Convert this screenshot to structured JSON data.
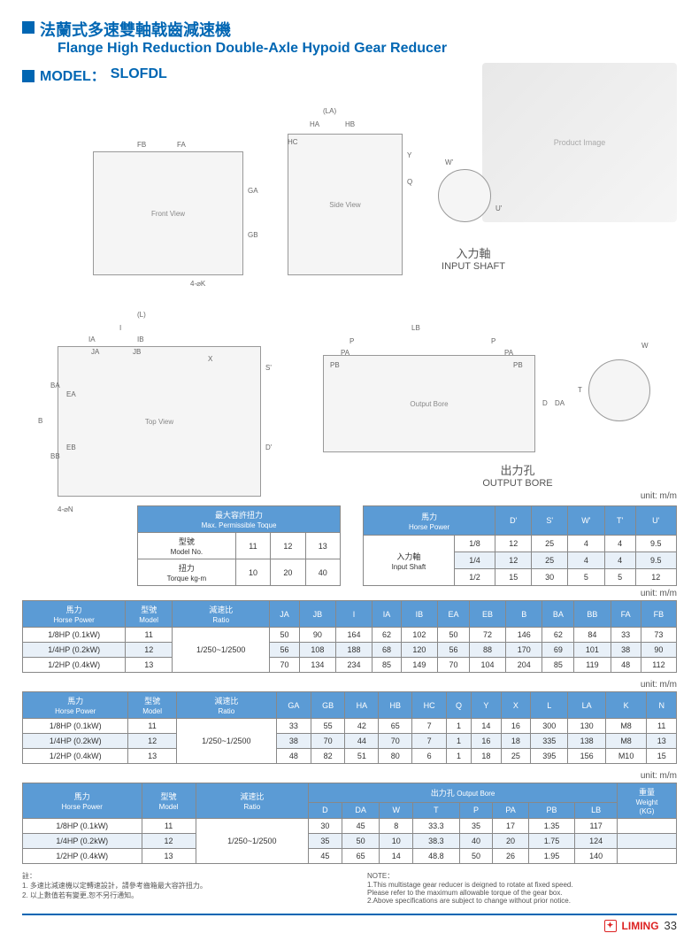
{
  "header": {
    "cn": "法蘭式多速雙軸戟齒減速機",
    "en": "Flange High Reduction Double-Axle Hypoid Gear Reducer",
    "model_lbl": "MODEL：",
    "model": "SLOFDL"
  },
  "labels": {
    "input_shaft_cn": "入力軸",
    "input_shaft_en": "INPUT SHAFT",
    "output_bore_cn": "出力孔",
    "output_bore_en": "OUTPUT BORE",
    "unit": "unit: m/m"
  },
  "dims": {
    "LA": "(LA)",
    "HA": "HA",
    "HB": "HB",
    "HC": "HC",
    "FB": "FB",
    "FA": "FA",
    "GA": "GA",
    "GB": "GB",
    "K": "4-⌀K",
    "Y": "Y",
    "Q": "Q",
    "W": "W'",
    "U": "U'",
    "L": "(L)",
    "I": "I",
    "IA": "IA",
    "IB": "IB",
    "JA": "JA",
    "JB": "JB",
    "X": "X",
    "S": "S'",
    "B": "B",
    "BA": "BA",
    "BB": "BB",
    "EA": "EA",
    "EB": "EB",
    "D": "D'",
    "N": "4-⌀N",
    "LB": "LB",
    "P": "P",
    "PA": "PA",
    "PB": "PB",
    "D2": "D",
    "DA": "DA",
    "T": "T",
    "W2": "W"
  },
  "torque": {
    "title_cn": "最大容許扭力",
    "title_en": "Max. Permissible Toque",
    "r1_cn": "型號",
    "r1_en": "Model No.",
    "r1_vals": [
      "11",
      "12",
      "13"
    ],
    "r2_cn": "扭力",
    "r2_en": "Torque kg-m",
    "r2_vals": [
      "10",
      "20",
      "40"
    ]
  },
  "shaft": {
    "hp_cn": "馬力",
    "hp_en": "Horse Power",
    "in_cn": "入力軸",
    "in_en": "Input Shaft",
    "cols": [
      "D'",
      "S'",
      "W'",
      "T'",
      "U'"
    ],
    "rows": [
      {
        "hp": "1/8",
        "v": [
          "12",
          "25",
          "4",
          "4",
          "9.5"
        ]
      },
      {
        "hp": "1/4",
        "v": [
          "12",
          "25",
          "4",
          "4",
          "9.5"
        ],
        "shade": true
      },
      {
        "hp": "1/2",
        "v": [
          "15",
          "30",
          "5",
          "5",
          "12"
        ]
      }
    ]
  },
  "t1": {
    "head": {
      "hp_cn": "馬力",
      "hp_en": "Horse Power",
      "m_cn": "型號",
      "m_en": "Model",
      "r_cn": "減速比",
      "r_en": "Ratio"
    },
    "cols": [
      "JA",
      "JB",
      "I",
      "IA",
      "IB",
      "EA",
      "EB",
      "B",
      "BA",
      "BB",
      "FA",
      "FB"
    ],
    "ratio": "1/250~1/2500",
    "rows": [
      {
        "hp": "1/8HP (0.1kW)",
        "m": "11",
        "v": [
          "50",
          "90",
          "164",
          "62",
          "102",
          "50",
          "72",
          "146",
          "62",
          "84",
          "33",
          "73"
        ]
      },
      {
        "hp": "1/4HP (0.2kW)",
        "m": "12",
        "v": [
          "56",
          "108",
          "188",
          "68",
          "120",
          "56",
          "88",
          "170",
          "69",
          "101",
          "38",
          "90"
        ],
        "shade": true
      },
      {
        "hp": "1/2HP (0.4kW)",
        "m": "13",
        "v": [
          "70",
          "134",
          "234",
          "85",
          "149",
          "70",
          "104",
          "204",
          "85",
          "119",
          "48",
          "112"
        ]
      }
    ]
  },
  "t2": {
    "cols": [
      "GA",
      "GB",
      "HA",
      "HB",
      "HC",
      "Q",
      "Y",
      "X",
      "L",
      "LA",
      "K",
      "N"
    ],
    "ratio": "1/250~1/2500",
    "rows": [
      {
        "hp": "1/8HP (0.1kW)",
        "m": "11",
        "v": [
          "33",
          "55",
          "42",
          "65",
          "7",
          "1",
          "14",
          "16",
          "300",
          "130",
          "M8",
          "11"
        ]
      },
      {
        "hp": "1/4HP (0.2kW)",
        "m": "12",
        "v": [
          "38",
          "70",
          "44",
          "70",
          "7",
          "1",
          "16",
          "18",
          "335",
          "138",
          "M8",
          "13"
        ],
        "shade": true
      },
      {
        "hp": "1/2HP (0.4kW)",
        "m": "13",
        "v": [
          "48",
          "82",
          "51",
          "80",
          "6",
          "1",
          "18",
          "25",
          "395",
          "156",
          "M10",
          "15"
        ]
      }
    ]
  },
  "t3": {
    "ob_cn": "出力孔",
    "ob_en": "Output Bore",
    "wt_cn": "重量",
    "wt_en": "Weight",
    "wt_u": "(KG)",
    "cols": [
      "D",
      "DA",
      "W",
      "T",
      "P",
      "PA",
      "PB",
      "LB"
    ],
    "ratio": "1/250~1/2500",
    "rows": [
      {
        "hp": "1/8HP (0.1kW)",
        "m": "11",
        "v": [
          "30",
          "45",
          "8",
          "33.3",
          "35",
          "17",
          "1.35",
          "117"
        ],
        "wt": ""
      },
      {
        "hp": "1/4HP (0.2kW)",
        "m": "12",
        "v": [
          "35",
          "50",
          "10",
          "38.3",
          "40",
          "20",
          "1.75",
          "124"
        ],
        "wt": "",
        "shade": true
      },
      {
        "hp": "1/2HP (0.4kW)",
        "m": "13",
        "v": [
          "45",
          "65",
          "14",
          "48.8",
          "50",
          "26",
          "1.95",
          "140"
        ],
        "wt": ""
      }
    ]
  },
  "notes": {
    "cn_h": "註：",
    "cn1": "1. 多速比減速機以定轉速設計，請參考齒箱最大容許扭力。",
    "cn2": "2. 以上數值若有變更,恕不另行通知。",
    "en_h": "NOTE：",
    "en1": "1.This multistage gear reducer is deigned to rotate at fixed speed.",
    "en1b": "   Please refer to the maximum allowable torque of the gear box.",
    "en2": "2.Above specifications are subject to change without prior notice."
  },
  "footer": {
    "brand": "LIMING",
    "page": "33"
  }
}
